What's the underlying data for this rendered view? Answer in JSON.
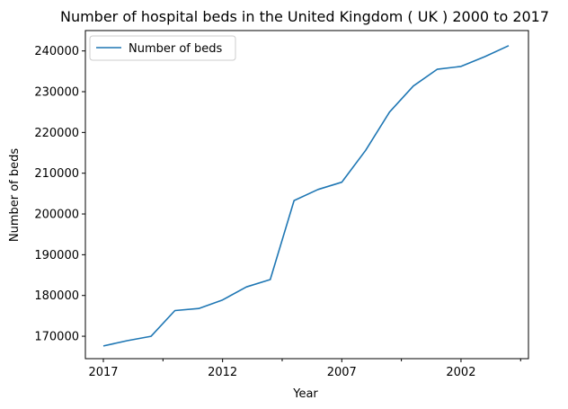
{
  "chart_data": {
    "type": "line",
    "title": "Number of hospital beds in the United Kingdom ( UK ) 2000 to 2017",
    "xlabel": "Year",
    "ylabel": "Number of beds",
    "x": [
      2017,
      2016,
      2015,
      2014,
      2013,
      2012,
      2011,
      2010,
      2009,
      2008,
      2007,
      2006,
      2005,
      2004,
      2003,
      2002,
      2001,
      2000
    ],
    "x_axis_direction": "descending",
    "xticks_labeled": [
      "2017",
      "2012",
      "2007",
      "2002"
    ],
    "yticks": [
      "170000",
      "180000",
      "190000",
      "200000",
      "210000",
      "220000",
      "230000",
      "240000"
    ],
    "ylim": [
      164500,
      245000
    ],
    "grid": false,
    "legend_position": "top-left",
    "series": [
      {
        "name": "Number of beds",
        "color": "#1f77b4",
        "values": [
          167600,
          168900,
          170000,
          176300,
          176800,
          178900,
          182100,
          183900,
          203300,
          206000,
          207800,
          215600,
          225000,
          231400,
          235500,
          236200,
          238600,
          241300
        ]
      }
    ]
  }
}
